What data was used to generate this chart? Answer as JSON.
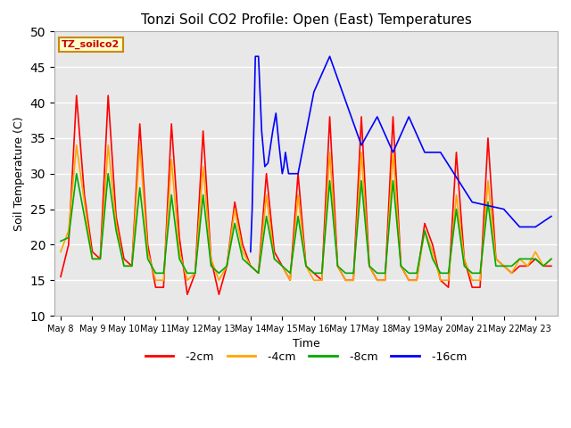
{
  "title": "Tonzi Soil CO2 Profile: Open (East) Temperatures",
  "xlabel": "Time",
  "ylabel": "Soil Temperature (C)",
  "ylim": [
    10,
    50
  ],
  "bg_color": "#e8e8e8",
  "grid_color": "white",
  "legend_label": "TZ_soilco2",
  "x_tick_labels": [
    "May 8",
    "May 9",
    "May 10",
    "May 11",
    "May 12",
    "May 13",
    "May 14",
    "May 15",
    "May 16",
    "May 17",
    "May 18",
    "May 19",
    "May 20",
    "May 21",
    "May 22",
    "May 23"
  ],
  "series_2cm": {
    "color": "#ff0000",
    "x": [
      0.0,
      0.25,
      0.5,
      0.75,
      1.0,
      1.25,
      1.5,
      1.75,
      2.0,
      2.25,
      2.5,
      2.75,
      3.0,
      3.25,
      3.5,
      3.75,
      4.0,
      4.25,
      4.5,
      4.75,
      5.0,
      5.25,
      5.5,
      5.75,
      6.0,
      6.25,
      6.5,
      6.75,
      7.0,
      7.25,
      7.5,
      7.75,
      8.0,
      8.25,
      8.5,
      8.75,
      9.0,
      9.25,
      9.5,
      9.75,
      10.0,
      10.25,
      10.5,
      10.75,
      11.0,
      11.25,
      11.5,
      11.75,
      12.0,
      12.25,
      12.5,
      12.75,
      13.0,
      13.25,
      13.5,
      13.75,
      14.0,
      14.25,
      14.5,
      14.75,
      15.0,
      15.25,
      15.5
    ],
    "y": [
      15.5,
      20,
      41,
      27,
      19,
      18,
      41,
      24,
      18,
      17,
      37,
      20,
      14,
      14,
      37,
      21,
      13,
      16,
      36,
      18,
      13,
      17,
      26,
      20,
      17,
      16,
      30,
      19,
      17,
      15,
      30,
      17,
      16,
      15,
      38,
      17,
      15,
      15,
      38,
      17,
      15,
      15,
      38,
      17,
      15,
      15,
      23,
      20,
      15,
      14,
      33,
      18,
      14,
      14,
      35,
      18,
      17,
      16,
      17,
      17,
      18,
      17,
      17
    ]
  },
  "series_4cm": {
    "color": "#ffa500",
    "x": [
      0.0,
      0.25,
      0.5,
      0.75,
      1.0,
      1.25,
      1.5,
      1.75,
      2.0,
      2.25,
      2.5,
      2.75,
      3.0,
      3.25,
      3.5,
      3.75,
      4.0,
      4.25,
      4.5,
      4.75,
      5.0,
      5.25,
      5.5,
      5.75,
      6.0,
      6.25,
      6.5,
      6.75,
      7.0,
      7.25,
      7.5,
      7.75,
      8.0,
      8.25,
      8.5,
      8.75,
      9.0,
      9.25,
      9.5,
      9.75,
      10.0,
      10.25,
      10.5,
      10.75,
      11.0,
      11.25,
      11.5,
      11.75,
      12.0,
      12.25,
      12.5,
      12.75,
      13.0,
      13.25,
      13.5,
      13.75,
      14.0,
      14.25,
      14.5,
      14.75,
      15.0,
      15.25,
      15.5
    ],
    "y": [
      19,
      22,
      34,
      26,
      18,
      18,
      34,
      23,
      17,
      17,
      34,
      19,
      15,
      15,
      32,
      19,
      15,
      16,
      31,
      18,
      15,
      17,
      25,
      19,
      17,
      16,
      27,
      18,
      17,
      15,
      27,
      17,
      15,
      15,
      33,
      17,
      15,
      15,
      33,
      17,
      15,
      15,
      33,
      17,
      15,
      15,
      22,
      19,
      15,
      15,
      27,
      18,
      15,
      15,
      29,
      18,
      17,
      16,
      18,
      17,
      19,
      17,
      18
    ]
  },
  "series_8cm": {
    "color": "#00aa00",
    "x": [
      0.0,
      0.25,
      0.5,
      0.75,
      1.0,
      1.25,
      1.5,
      1.75,
      2.0,
      2.25,
      2.5,
      2.75,
      3.0,
      3.25,
      3.5,
      3.75,
      4.0,
      4.25,
      4.5,
      4.75,
      5.0,
      5.25,
      5.5,
      5.75,
      6.0,
      6.25,
      6.5,
      6.75,
      7.0,
      7.25,
      7.5,
      7.75,
      8.0,
      8.25,
      8.5,
      8.75,
      9.0,
      9.25,
      9.5,
      9.75,
      10.0,
      10.25,
      10.5,
      10.75,
      11.0,
      11.25,
      11.5,
      11.75,
      12.0,
      12.25,
      12.5,
      12.75,
      13.0,
      13.25,
      13.5,
      13.75,
      14.0,
      14.25,
      14.5,
      14.75,
      15.0,
      15.25,
      15.5
    ],
    "y": [
      20.5,
      21,
      30,
      24,
      18,
      18,
      30,
      22,
      17,
      17,
      28,
      18,
      16,
      16,
      27,
      18,
      16,
      16,
      27,
      17,
      16,
      17,
      23,
      18,
      17,
      16,
      24,
      18,
      17,
      16,
      24,
      17,
      16,
      16,
      29,
      17,
      16,
      16,
      29,
      17,
      16,
      16,
      29,
      17,
      16,
      16,
      22,
      18,
      16,
      16,
      25,
      17,
      16,
      16,
      26,
      17,
      17,
      17,
      18,
      18,
      18,
      17,
      18
    ]
  },
  "series_16cm": {
    "color": "#0000ff",
    "x": [
      6.0,
      6.05,
      6.15,
      6.25,
      6.35,
      6.45,
      6.55,
      6.7,
      6.8,
      6.9,
      7.0,
      7.05,
      7.1,
      7.2,
      7.5,
      8.0,
      8.5,
      9.5,
      10.0,
      10.5,
      11.0,
      11.5,
      12.0,
      13.0,
      14.0,
      14.5,
      15.0,
      15.5
    ],
    "y": [
      19.0,
      25,
      46.5,
      46.5,
      36,
      31,
      31.5,
      36,
      38.5,
      34,
      30,
      31,
      33,
      30,
      30,
      41.5,
      46.5,
      34,
      38,
      33,
      38,
      33,
      33,
      26,
      25,
      22.5,
      22.5,
      24
    ]
  }
}
